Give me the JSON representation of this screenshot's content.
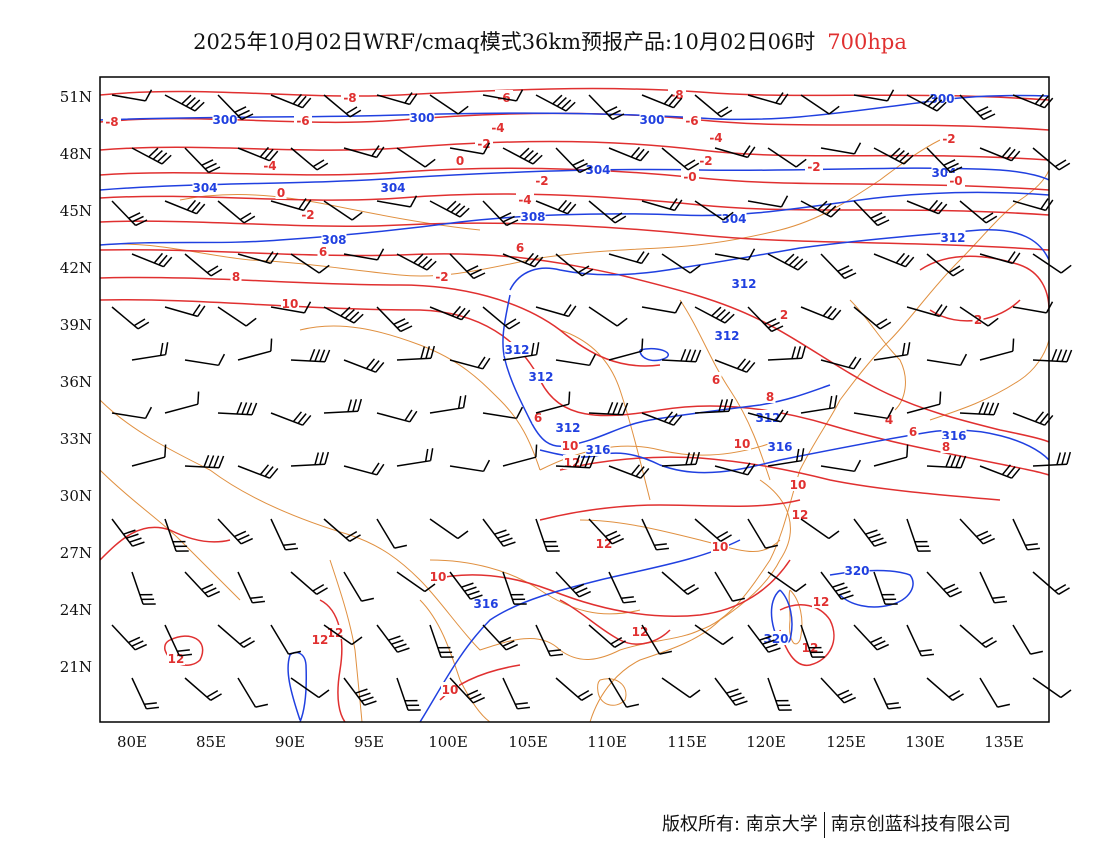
{
  "title": {
    "main": "2025年10月02日WRF/cmaq模式36km预报产品:10月02日06时",
    "level": "700hpa"
  },
  "axes": {
    "lat_labels": [
      "51N",
      "48N",
      "45N",
      "42N",
      "39N",
      "36N",
      "33N",
      "30N",
      "27N",
      "24N",
      "21N"
    ],
    "lon_labels": [
      "80E",
      "85E",
      "90E",
      "95E",
      "100E",
      "105E",
      "110E",
      "115E",
      "120E",
      "125E",
      "130E",
      "135E"
    ]
  },
  "legend": {
    "height_contour_color": "#2040e0",
    "temperature_contour_color": "#e03030",
    "boundary_color": "#e09040",
    "wind_barb_color": "#000000"
  },
  "contour_labels": {
    "height": [
      "300",
      "300",
      "300",
      "300",
      "304",
      "304",
      "304",
      "304",
      "308",
      "308",
      "304",
      "312",
      "312",
      "312",
      "312",
      "312",
      "312",
      "312",
      "316",
      "316",
      "316",
      "316",
      "320",
      "320"
    ],
    "temperature": [
      "-8",
      "-8",
      "-6",
      "-6",
      "-6",
      "-8",
      "-4",
      "-4",
      "-4",
      "-2",
      "-2",
      "-2",
      "0",
      "0",
      "-0",
      "-0",
      "-2",
      "-2",
      "-4",
      "-2",
      "2",
      "4",
      "6",
      "6",
      "6",
      "8",
      "8",
      "10",
      "2",
      "-2",
      "6",
      "8",
      "4",
      "6",
      "8",
      "10",
      "10",
      "12",
      "10",
      "12",
      "10",
      "12",
      "12",
      "12",
      "12",
      "10",
      "10",
      "12",
      "12",
      "12"
    ]
  },
  "footer": {
    "copyright": "版权所有: 南京大学",
    "company": "南京创蓝科技有限公司"
  }
}
